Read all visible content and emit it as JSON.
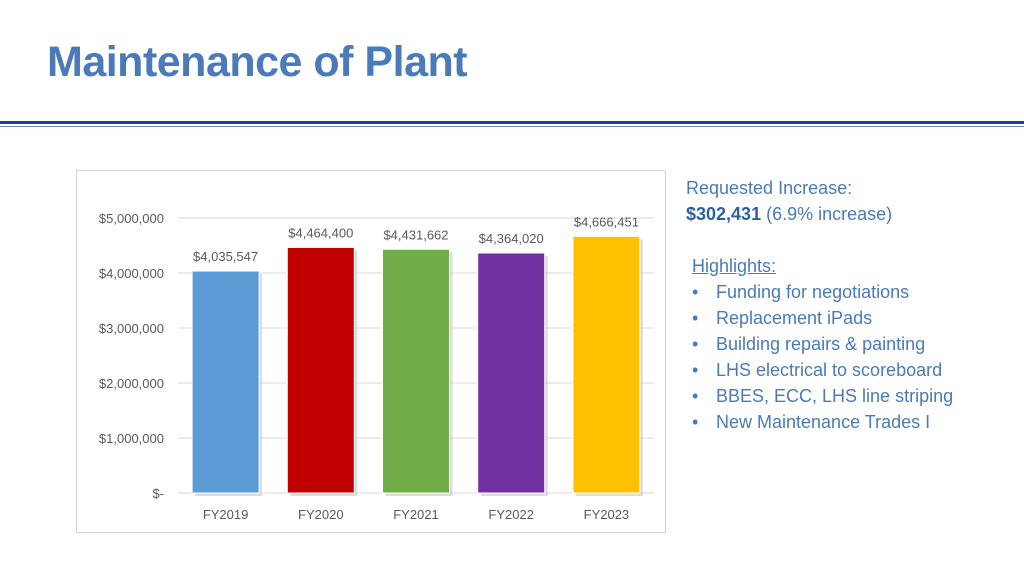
{
  "title": "Maintenance of Plant",
  "side_panel": {
    "requested_label": "Requested Increase:",
    "requested_amount": "$302,431",
    "requested_pct": " (6.9% increase)",
    "highlights_heading": "Highlights:",
    "bullet_glyph": "•",
    "highlights": [
      "Funding for negotiations",
      "Replacement iPads",
      "Building repairs & painting",
      "LHS electrical to scoreboard",
      "BBES, ECC, LHS line striping",
      "New Maintenance Trades I"
    ]
  },
  "chart_data": {
    "type": "bar",
    "categories": [
      "FY2019",
      "FY2020",
      "FY2021",
      "FY2022",
      "FY2023"
    ],
    "values": [
      4035547,
      4464400,
      4431662,
      4364020,
      4666451
    ],
    "data_labels": [
      "$4,035,547",
      "$4,464,400",
      "$4,431,662",
      "$4,364,020",
      "$4,666,451"
    ],
    "bar_colors": [
      "#5b9bd5",
      "#c00000",
      "#70ad47",
      "#7030a0",
      "#ffc000"
    ],
    "ylim": [
      0,
      5000000
    ],
    "yticks": [
      0,
      1000000,
      2000000,
      3000000,
      4000000,
      5000000
    ],
    "ytick_labels": [
      "$-",
      "$1,000,000",
      "$2,000,000",
      "$3,000,000",
      "$4,000,000",
      "$5,000,000"
    ],
    "grid": true,
    "legend": "none"
  }
}
